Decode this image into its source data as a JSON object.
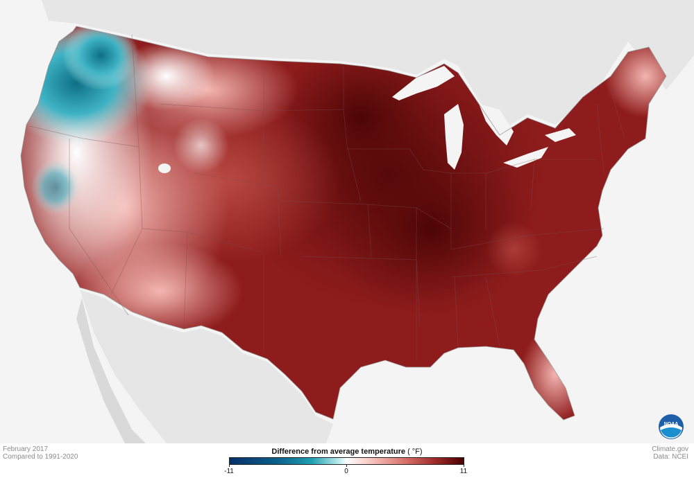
{
  "legend": {
    "title": "Difference from average temperature",
    "unit": "( °F)",
    "min_label": "-11",
    "mid_label": "0",
    "max_label": "11",
    "scale_min": -11,
    "scale_max": 11
  },
  "metadata": {
    "date": "February 2017",
    "baseline": "Compared to 1991-2020",
    "credit_source": "Climate.gov",
    "credit_data": "Data: NCEI"
  },
  "logo": {
    "text": "NOAA"
  },
  "colors": {
    "cold": "#08306b",
    "neutral": "#ffffff",
    "warm": "#4a0000",
    "land_outside": "#e6e6e6",
    "water": "#f4f4f4"
  },
  "icons": {
    "agency_logo": "noaa-logo-icon"
  }
}
